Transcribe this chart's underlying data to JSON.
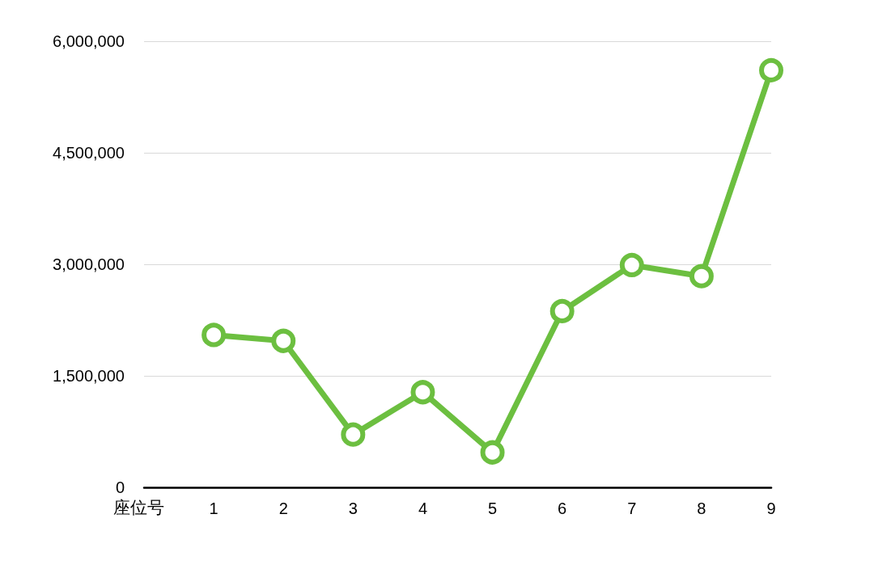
{
  "chart_data": {
    "type": "line",
    "xlabel": "座位号",
    "x": [
      1,
      2,
      3,
      4,
      5,
      6,
      7,
      8,
      9
    ],
    "series": [
      {
        "color": "#6cbf40",
        "values": [
          2050000,
          1970000,
          710000,
          1280000,
          470000,
          2370000,
          2990000,
          2840000,
          5610000
        ]
      }
    ],
    "xlim": [
      0,
      9
    ],
    "xticks": [
      1,
      2,
      3,
      4,
      5,
      6,
      7,
      8,
      9
    ],
    "ylim": [
      0,
      6000000
    ],
    "yticks": [
      0,
      {
        "value": 1500000,
        "label": "1,500,000"
      },
      {
        "value": 3000000,
        "label": "3,000,000"
      },
      {
        "value": 4500000,
        "label": "4,500,000"
      },
      {
        "value": 6000000,
        "label": "6,000,000"
      }
    ],
    "grid": "y",
    "marker": "circle",
    "line_style": "solid"
  }
}
